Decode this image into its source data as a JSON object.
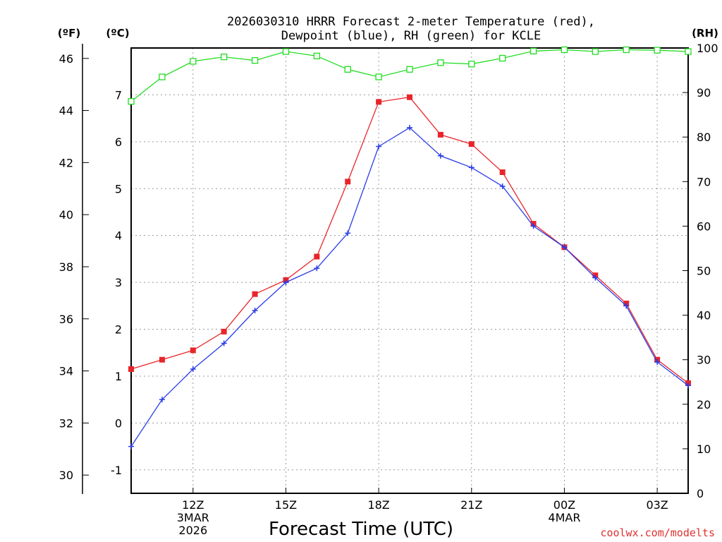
{
  "title": {
    "line1": "2026030310 HRRR Forecast 2-meter Temperature (red),",
    "line2": "Dewpoint (blue), RH (green) for KCLE"
  },
  "units": {
    "fahrenheit": "(ºF)",
    "celsius": "(ºC)",
    "rh": "(RH)"
  },
  "credit": "coolwx.com/modelts",
  "colors": {
    "temperature": "#e8252a",
    "dewpoint": "#2a3de8",
    "rh": "#22dd22",
    "grid": "#9a9a9a"
  },
  "chart_data": {
    "type": "line",
    "title": "2026030310 HRRR Forecast 2-meter Temperature (red), Dewpoint (blue), RH (green) for KCLE",
    "xlabel": "Forecast Time (UTC)",
    "x": [
      10,
      11,
      12,
      13,
      14,
      15,
      16,
      17,
      18,
      19,
      20,
      21,
      22,
      23,
      24,
      25,
      26,
      27,
      28
    ],
    "xlim": [
      10,
      28
    ],
    "x_units": "hours after 2026-03-03 00Z",
    "x_ticks": [
      {
        "x": 12,
        "lines": [
          "12Z",
          "3MAR",
          "2026"
        ]
      },
      {
        "x": 15,
        "lines": [
          "15Z"
        ]
      },
      {
        "x": 18,
        "lines": [
          "18Z"
        ]
      },
      {
        "x": 21,
        "lines": [
          "21Z"
        ]
      },
      {
        "x": 24,
        "lines": [
          "00Z",
          "4MAR"
        ]
      },
      {
        "x": 27,
        "lines": [
          "03Z"
        ]
      }
    ],
    "ylabel_celsius": "(ºC)",
    "ylim_celsius": [
      -1.5,
      8.0
    ],
    "yticks_celsius": [
      "-1",
      "0",
      "1",
      "2",
      "3",
      "4",
      "5",
      "6",
      "7"
    ],
    "ylabel_fahrenheit": "(ºF)",
    "yticks_fahrenheit": [
      "30",
      "32",
      "34",
      "36",
      "38",
      "40",
      "42",
      "44",
      "46"
    ],
    "ylabel_rh": "(RH)",
    "ylim_rh": [
      0,
      100
    ],
    "yticks_rh": [
      "0",
      "10",
      "20",
      "30",
      "40",
      "50",
      "60",
      "70",
      "80",
      "90",
      "100"
    ],
    "series": [
      {
        "name": "Temperature",
        "axis": "celsius",
        "marker": "filled-square",
        "values": [
          1.15,
          1.35,
          1.55,
          1.95,
          2.75,
          3.05,
          3.55,
          5.15,
          6.85,
          6.95,
          6.15,
          5.95,
          5.35,
          4.25,
          3.75,
          3.15,
          2.55,
          1.35,
          0.85
        ]
      },
      {
        "name": "Dewpoint",
        "axis": "celsius",
        "marker": "plus",
        "values": [
          -0.5,
          0.5,
          1.15,
          1.7,
          2.4,
          3.0,
          3.3,
          4.05,
          5.9,
          6.3,
          5.7,
          5.45,
          5.05,
          4.2,
          3.75,
          3.1,
          2.5,
          1.3,
          0.8
        ]
      },
      {
        "name": "RH",
        "axis": "rh",
        "marker": "open-square",
        "values": [
          88,
          93.5,
          97,
          98,
          97.2,
          99.2,
          98.2,
          95.2,
          93.5,
          95.2,
          96.7,
          96.4,
          97.7,
          99.3,
          99.6,
          99.2,
          99.6,
          99.5,
          99.2
        ]
      }
    ]
  }
}
